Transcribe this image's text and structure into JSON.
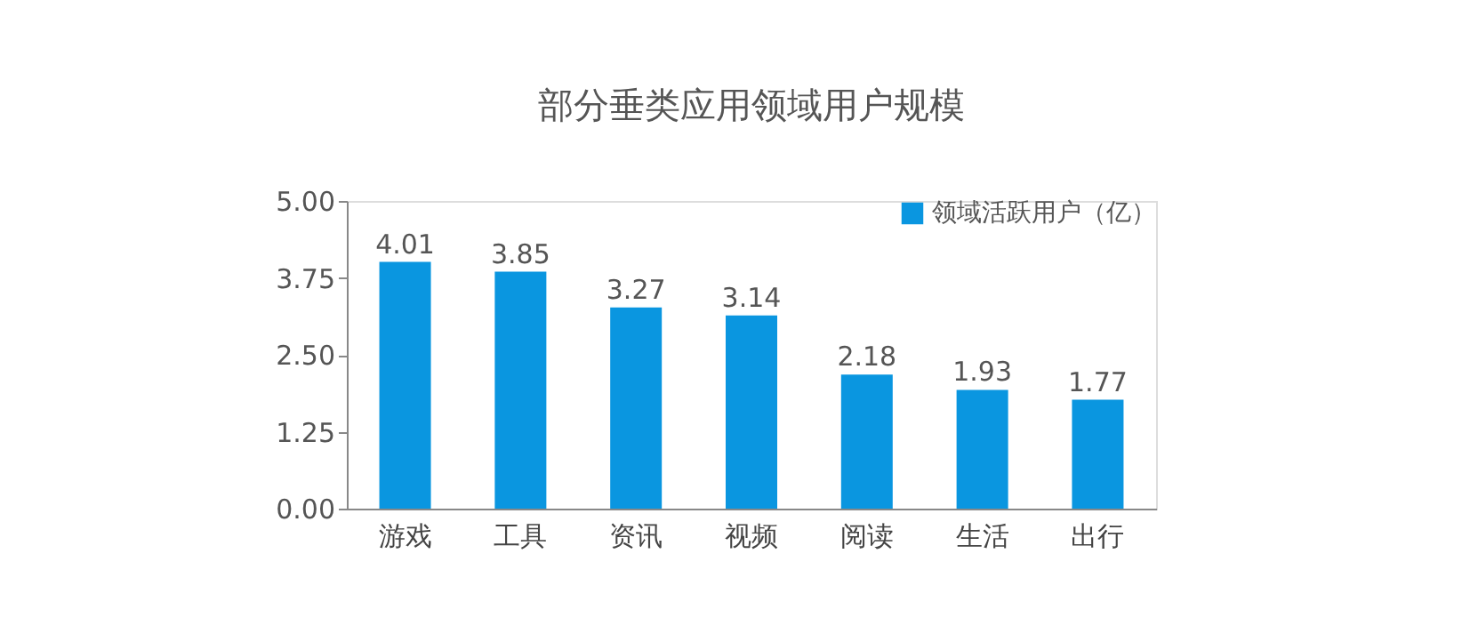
{
  "chart_data": {
    "type": "bar",
    "title": "部分垂类应用领域用户规模",
    "categories": [
      "游戏",
      "工具",
      "资讯",
      "视频",
      "阅读",
      "生活",
      "出行"
    ],
    "series": [
      {
        "name": "领域活跃用户（亿）",
        "color": "#0a96e0",
        "values": [
          4.01,
          3.85,
          3.27,
          3.14,
          2.18,
          1.93,
          1.77
        ]
      }
    ],
    "ylim": [
      0,
      5
    ],
    "yticks": [
      {
        "value": 0,
        "label": "0.00"
      },
      {
        "value": 1.25,
        "label": "1.25"
      },
      {
        "value": 2.5,
        "label": "2.50"
      },
      {
        "value": 3.75,
        "label": "3.75"
      },
      {
        "value": 5,
        "label": "5.00"
      }
    ],
    "data_labels": true,
    "grid": false,
    "legend": "top right"
  }
}
